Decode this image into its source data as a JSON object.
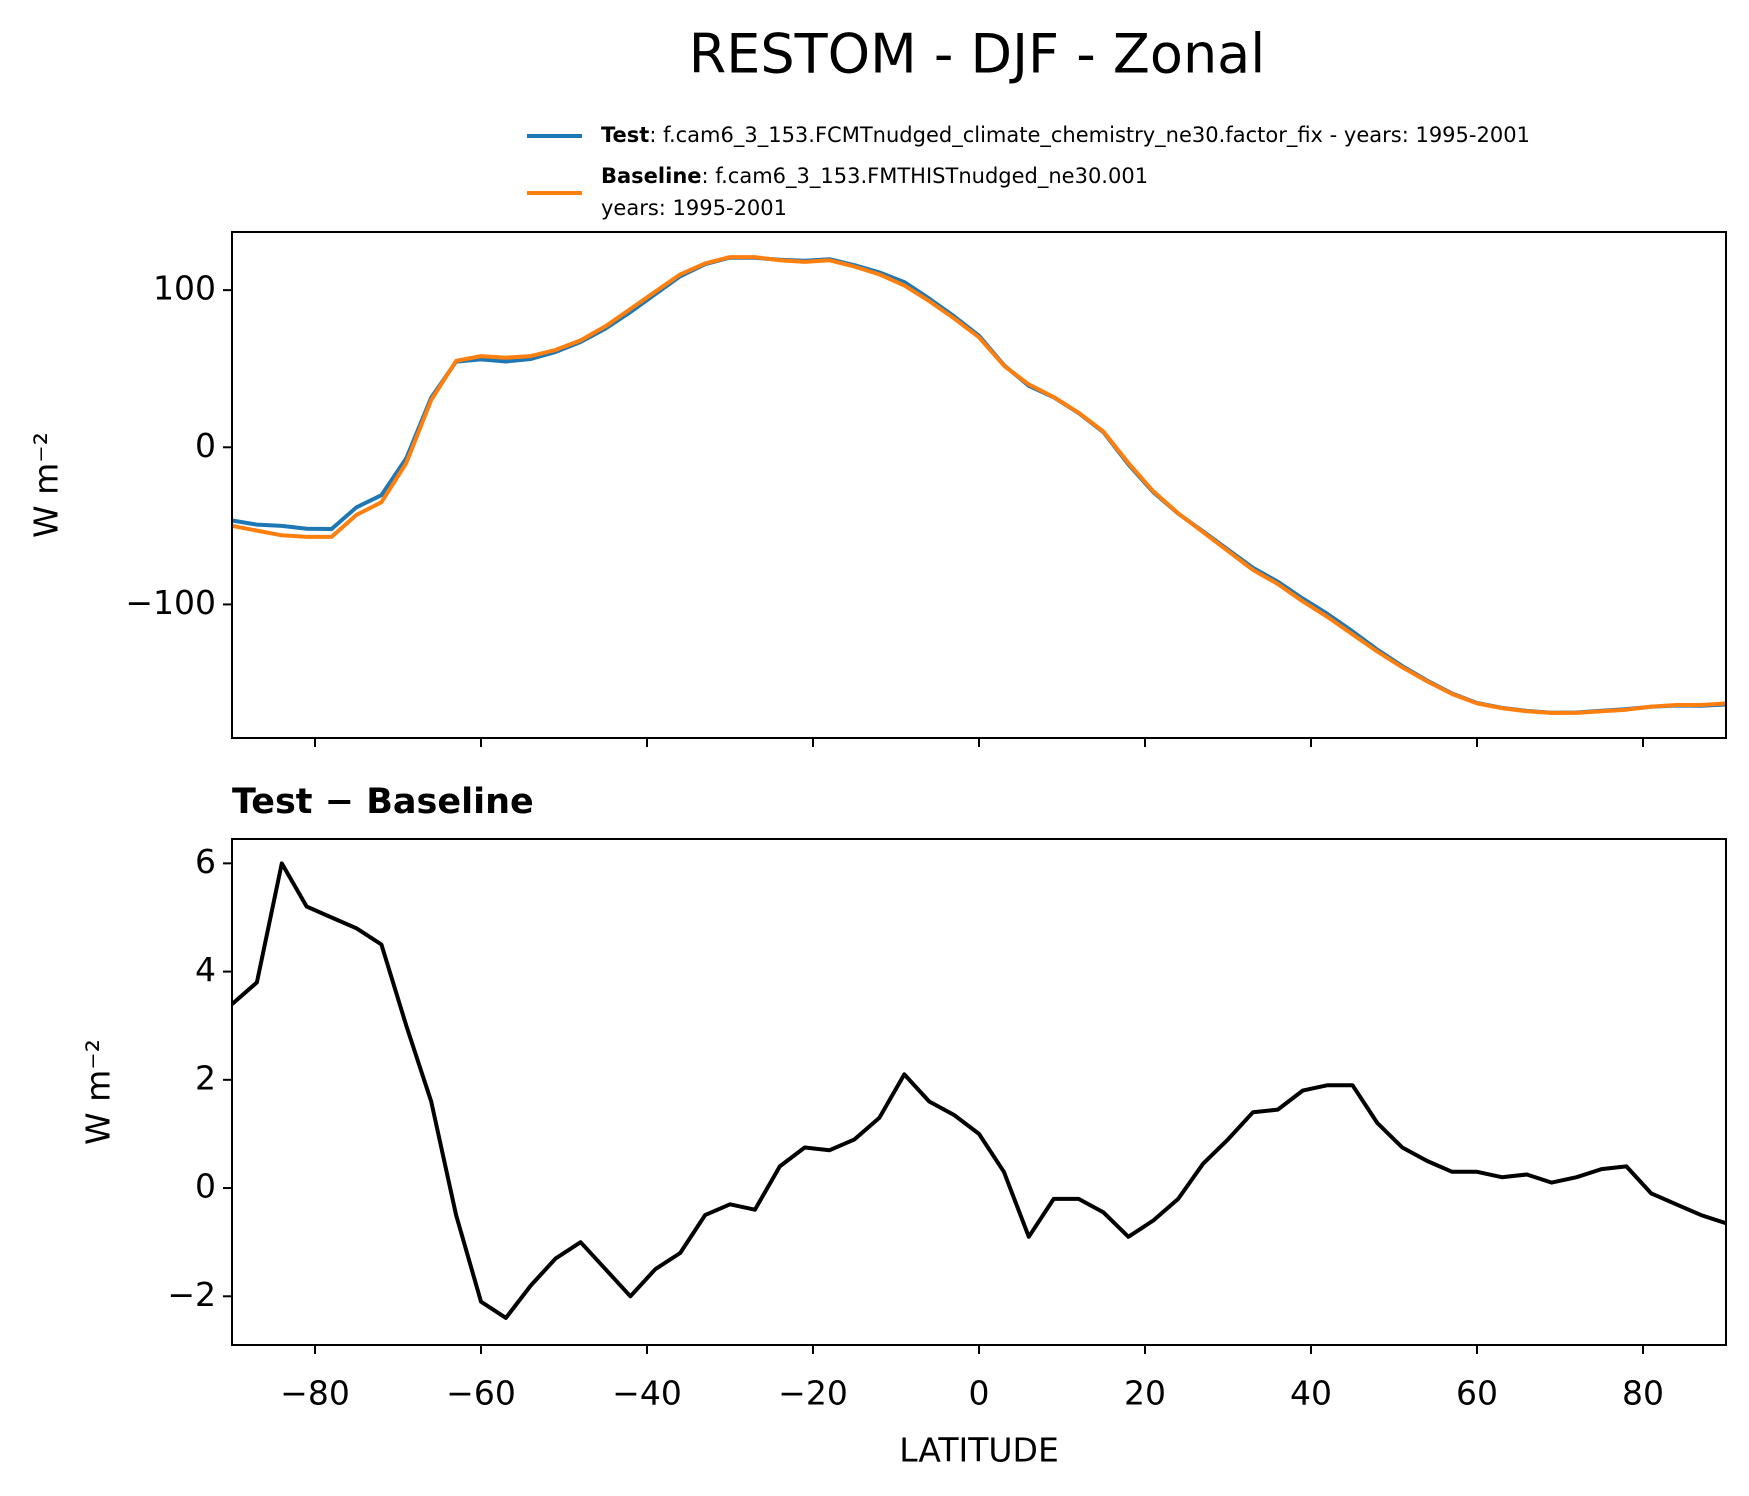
{
  "chart_data": [
    {
      "type": "line",
      "title": "RESTOM - DJF - Zonal",
      "ylabel": "W m⁻²",
      "x": [
        -90,
        -87,
        -84,
        -81,
        -78,
        -75,
        -72,
        -69,
        -66,
        -63,
        -60,
        -57,
        -54,
        -51,
        -48,
        -45,
        -42,
        -39,
        -36,
        -33,
        -30,
        -27,
        -24,
        -21,
        -18,
        -15,
        -12,
        -9,
        -6,
        -3,
        0,
        3,
        6,
        9,
        12,
        15,
        18,
        21,
        24,
        27,
        30,
        33,
        36,
        39,
        42,
        45,
        48,
        51,
        54,
        57,
        60,
        63,
        66,
        69,
        72,
        75,
        78,
        81,
        84,
        87,
        90
      ],
      "series": [
        {
          "name": "Test",
          "description": [
            ": f.cam6_3_153.FCMTnudged_climate_chemistry_ne30.factor_fix - years: 1995-2001"
          ],
          "color": "#1f77b4",
          "values": [
            -46.6,
            -49.2,
            -50,
            -51.8,
            -52,
            -38.2,
            -30.5,
            -7,
            31.6,
            54.5,
            55.9,
            54.6,
            56.2,
            60.7,
            67,
            75.5,
            86,
            97.5,
            108.8,
            116.5,
            120.7,
            120.6,
            119.4,
            118.75,
            119.7,
            115.9,
            111.3,
            105.1,
            94.6,
            83.35,
            71,
            52.3,
            39.1,
            31.8,
            21.8,
            9.55,
            -10.9,
            -28.6,
            -42.2,
            -53.55,
            -65.1,
            -76.6,
            -85.55,
            -96.2,
            -106.1,
            -117.1,
            -128.8,
            -139.25,
            -148.5,
            -156.7,
            -162.7,
            -165.8,
            -167.75,
            -168.9,
            -168.8,
            -167.65,
            -166.6,
            -165.1,
            -164.3,
            -164.5,
            -163.65
          ]
        },
        {
          "name": "Baseline",
          "description": [
            ": f.cam6_3_153.FMTHISTnudged_ne30.001",
            "years: 1995-2001"
          ],
          "color": "#ff7f0e",
          "values": [
            -50,
            -53,
            -56,
            -57,
            -57,
            -43,
            -35,
            -10,
            30,
            55,
            58,
            57,
            58,
            62,
            68,
            77,
            88,
            99,
            110,
            117,
            121,
            121,
            119,
            118,
            119,
            115,
            110,
            103,
            93,
            82,
            70,
            52,
            40,
            32,
            22,
            10,
            -10,
            -28,
            -42,
            -54,
            -66,
            -78,
            -87,
            -98,
            -108,
            -119,
            -130,
            -140,
            -149,
            -157,
            -163,
            -166,
            -168,
            -169,
            -169,
            -168,
            -167,
            -165,
            -164,
            -164,
            -163
          ]
        }
      ],
      "xlim": [
        -90,
        90
      ],
      "xticks": [
        -80,
        -60,
        -40,
        -20,
        0,
        20,
        40,
        60,
        80
      ],
      "ylim": [
        -185,
        137
      ],
      "yticks": [
        {
          "value": -100,
          "label": "−100"
        },
        0,
        100
      ]
    },
    {
      "type": "line",
      "title": "Test − Baseline",
      "xlabel": "LATITUDE",
      "ylabel": "W m⁻²",
      "color": "#000000",
      "x": [
        -90,
        -87,
        -84,
        -81,
        -78,
        -75,
        -72,
        -69,
        -66,
        -63,
        -60,
        -57,
        -54,
        -51,
        -48,
        -45,
        -42,
        -39,
        -36,
        -33,
        -30,
        -27,
        -24,
        -21,
        -18,
        -15,
        -12,
        -9,
        -6,
        -3,
        0,
        3,
        6,
        9,
        12,
        15,
        18,
        21,
        24,
        27,
        30,
        33,
        36,
        39,
        42,
        45,
        48,
        51,
        54,
        57,
        60,
        63,
        66,
        69,
        72,
        75,
        78,
        81,
        84,
        87,
        90
      ],
      "values": [
        3.4,
        3.8,
        6.0,
        5.2,
        5.0,
        4.8,
        4.5,
        3.0,
        1.6,
        -0.5,
        -2.1,
        -2.4,
        -1.8,
        -1.3,
        -1.0,
        -1.5,
        -2.0,
        -1.5,
        -1.2,
        -0.5,
        -0.3,
        -0.4,
        0.4,
        0.75,
        0.7,
        0.9,
        1.3,
        2.1,
        1.6,
        1.35,
        1.0,
        0.3,
        -0.9,
        -0.2,
        -0.2,
        -0.45,
        -0.9,
        -0.6,
        -0.2,
        0.45,
        0.9,
        1.4,
        1.45,
        1.8,
        1.9,
        1.9,
        1.2,
        0.75,
        0.5,
        0.3,
        0.3,
        0.2,
        0.25,
        0.1,
        0.2,
        0.35,
        0.4,
        -0.1,
        -0.3,
        -0.5,
        -0.65
      ],
      "xlim": [
        -90,
        90
      ],
      "xticks": [
        {
          "value": -80,
          "label": "−80"
        },
        {
          "value": -60,
          "label": "−60"
        },
        {
          "value": -40,
          "label": "−40"
        },
        {
          "value": -20,
          "label": "−20"
        },
        0,
        20,
        40,
        60,
        80
      ],
      "ylim": [
        -2.9,
        6.45
      ],
      "yticks": [
        {
          "value": -2,
          "label": "−2"
        },
        0,
        2,
        4,
        6
      ]
    }
  ]
}
